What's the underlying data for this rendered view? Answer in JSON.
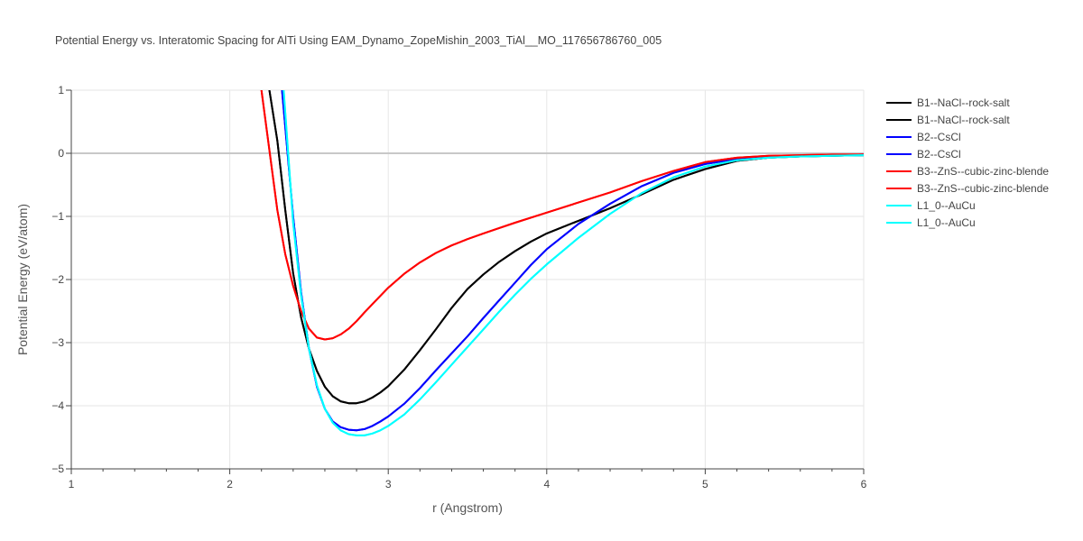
{
  "chart_data": {
    "type": "line",
    "title": "Potential Energy vs. Interatomic Spacing for AlTi Using EAM_Dynamo_ZopeMishin_2003_TiAl__MO_117656786760_005",
    "xlabel": "r (Angstrom)",
    "ylabel": "Potential Energy (eV/atom)",
    "xlim": [
      1,
      6
    ],
    "ylim": [
      -5,
      1
    ],
    "x_ticks": [
      1,
      2,
      3,
      4,
      5,
      6
    ],
    "y_ticks": [
      1,
      0,
      -1,
      -2,
      -3,
      -4,
      -5
    ],
    "x_tick_labels": [
      "1",
      "2",
      "3",
      "4",
      "5",
      "6"
    ],
    "y_tick_labels": [
      "1",
      "0",
      "−1",
      "−2",
      "−3",
      "−4",
      "−5"
    ],
    "grid": true,
    "legend_position": "top-right",
    "series": [
      {
        "name": "B1--NaCl--rock-salt",
        "color": "#000000",
        "x": [
          2.25,
          2.3,
          2.35,
          2.4,
          2.45,
          2.5,
          2.55,
          2.6,
          2.65,
          2.7,
          2.75,
          2.8,
          2.85,
          2.9,
          2.95,
          3.0,
          3.1,
          3.2,
          3.3,
          3.4,
          3.5,
          3.6,
          3.7,
          3.8,
          3.9,
          4.0,
          4.2,
          4.4,
          4.6,
          4.8,
          5.0,
          5.2,
          5.4,
          5.6,
          5.8,
          6.0
        ],
        "y": [
          1.0,
          0.2,
          -0.9,
          -1.9,
          -2.6,
          -3.1,
          -3.45,
          -3.7,
          -3.85,
          -3.93,
          -3.96,
          -3.96,
          -3.93,
          -3.87,
          -3.79,
          -3.69,
          -3.43,
          -3.12,
          -2.79,
          -2.45,
          -2.15,
          -1.92,
          -1.72,
          -1.55,
          -1.4,
          -1.27,
          -1.07,
          -0.87,
          -0.65,
          -0.42,
          -0.25,
          -0.12,
          -0.07,
          -0.05,
          -0.04,
          -0.03
        ]
      },
      {
        "name": "B1--NaCl--rock-salt",
        "color": "#000000",
        "x": [
          2.25,
          2.3,
          2.35,
          2.4,
          2.45,
          2.5,
          2.55,
          2.6,
          2.65,
          2.7,
          2.75,
          2.8,
          2.85,
          2.9,
          2.95,
          3.0,
          3.1,
          3.2,
          3.3,
          3.4,
          3.5,
          3.6,
          3.7,
          3.8,
          3.9,
          4.0,
          4.2,
          4.4,
          4.6,
          4.8,
          5.0,
          5.2,
          5.4,
          5.6,
          5.8,
          6.0
        ],
        "y": [
          1.0,
          0.2,
          -0.9,
          -1.9,
          -2.6,
          -3.1,
          -3.45,
          -3.7,
          -3.85,
          -3.93,
          -3.96,
          -3.96,
          -3.93,
          -3.87,
          -3.79,
          -3.69,
          -3.43,
          -3.12,
          -2.79,
          -2.45,
          -2.15,
          -1.92,
          -1.72,
          -1.55,
          -1.4,
          -1.27,
          -1.07,
          -0.87,
          -0.65,
          -0.42,
          -0.25,
          -0.12,
          -0.07,
          -0.05,
          -0.04,
          -0.03
        ]
      },
      {
        "name": "B2--CsCl",
        "color": "#0000ff",
        "x": [
          2.33,
          2.4,
          2.45,
          2.5,
          2.55,
          2.6,
          2.65,
          2.7,
          2.75,
          2.8,
          2.85,
          2.9,
          2.95,
          3.0,
          3.1,
          3.2,
          3.3,
          3.4,
          3.5,
          3.6,
          3.7,
          3.8,
          3.9,
          4.0,
          4.2,
          4.4,
          4.6,
          4.8,
          5.0,
          5.2,
          5.4,
          5.6,
          5.8,
          6.0
        ],
        "y": [
          1.0,
          -1.0,
          -2.2,
          -3.1,
          -3.7,
          -4.05,
          -4.25,
          -4.34,
          -4.38,
          -4.39,
          -4.37,
          -4.32,
          -4.25,
          -4.17,
          -3.97,
          -3.72,
          -3.44,
          -3.17,
          -2.9,
          -2.61,
          -2.33,
          -2.05,
          -1.77,
          -1.52,
          -1.12,
          -0.8,
          -0.52,
          -0.31,
          -0.17,
          -0.09,
          -0.06,
          -0.04,
          -0.03,
          -0.02
        ]
      },
      {
        "name": "B2--CsCl",
        "color": "#0000ff",
        "x": [
          2.33,
          2.4,
          2.45,
          2.5,
          2.55,
          2.6,
          2.65,
          2.7,
          2.75,
          2.8,
          2.85,
          2.9,
          2.95,
          3.0,
          3.1,
          3.2,
          3.3,
          3.4,
          3.5,
          3.6,
          3.7,
          3.8,
          3.9,
          4.0,
          4.2,
          4.4,
          4.6,
          4.8,
          5.0,
          5.2,
          5.4,
          5.6,
          5.8,
          6.0
        ],
        "y": [
          1.0,
          -1.0,
          -2.2,
          -3.1,
          -3.7,
          -4.05,
          -4.25,
          -4.34,
          -4.38,
          -4.39,
          -4.37,
          -4.32,
          -4.25,
          -4.17,
          -3.97,
          -3.72,
          -3.44,
          -3.17,
          -2.9,
          -2.61,
          -2.33,
          -2.05,
          -1.77,
          -1.52,
          -1.12,
          -0.8,
          -0.52,
          -0.31,
          -0.17,
          -0.09,
          -0.06,
          -0.04,
          -0.03,
          -0.02
        ]
      },
      {
        "name": "B3--ZnS--cubic-zinc-blende",
        "color": "#ff0000",
        "x": [
          2.2,
          2.25,
          2.3,
          2.35,
          2.4,
          2.45,
          2.5,
          2.55,
          2.6,
          2.65,
          2.7,
          2.75,
          2.8,
          2.85,
          2.9,
          2.95,
          3.0,
          3.1,
          3.2,
          3.3,
          3.4,
          3.5,
          3.6,
          3.8,
          4.0,
          4.2,
          4.4,
          4.6,
          4.8,
          5.0,
          5.2,
          5.4,
          5.6,
          5.8,
          6.0
        ],
        "y": [
          1.0,
          0.05,
          -0.9,
          -1.6,
          -2.1,
          -2.5,
          -2.78,
          -2.92,
          -2.95,
          -2.93,
          -2.87,
          -2.78,
          -2.66,
          -2.52,
          -2.39,
          -2.26,
          -2.13,
          -1.91,
          -1.73,
          -1.58,
          -1.46,
          -1.36,
          -1.27,
          -1.1,
          -0.94,
          -0.78,
          -0.62,
          -0.44,
          -0.28,
          -0.14,
          -0.07,
          -0.04,
          -0.03,
          -0.02,
          -0.02
        ]
      },
      {
        "name": "B3--ZnS--cubic-zinc-blende",
        "color": "#ff0000",
        "x": [
          2.2,
          2.25,
          2.3,
          2.35,
          2.4,
          2.45,
          2.5,
          2.55,
          2.6,
          2.65,
          2.7,
          2.75,
          2.8,
          2.85,
          2.9,
          2.95,
          3.0,
          3.1,
          3.2,
          3.3,
          3.4,
          3.5,
          3.6,
          3.8,
          4.0,
          4.2,
          4.4,
          4.6,
          4.8,
          5.0,
          5.2,
          5.4,
          5.6,
          5.8,
          6.0
        ],
        "y": [
          1.0,
          0.05,
          -0.9,
          -1.6,
          -2.1,
          -2.5,
          -2.78,
          -2.92,
          -2.95,
          -2.93,
          -2.87,
          -2.78,
          -2.66,
          -2.52,
          -2.39,
          -2.26,
          -2.13,
          -1.91,
          -1.73,
          -1.58,
          -1.46,
          -1.36,
          -1.27,
          -1.1,
          -0.94,
          -0.78,
          -0.62,
          -0.44,
          -0.28,
          -0.14,
          -0.07,
          -0.04,
          -0.03,
          -0.02,
          -0.02
        ]
      },
      {
        "name": "L1_0--AuCu",
        "color": "#00ffff",
        "x": [
          2.34,
          2.4,
          2.45,
          2.5,
          2.55,
          2.6,
          2.65,
          2.7,
          2.75,
          2.8,
          2.85,
          2.9,
          2.95,
          3.0,
          3.1,
          3.2,
          3.3,
          3.4,
          3.5,
          3.6,
          3.7,
          3.8,
          3.9,
          4.0,
          4.2,
          4.4,
          4.6,
          4.8,
          5.0,
          5.2,
          5.4,
          5.6,
          5.8,
          6.0
        ],
        "y": [
          1.0,
          -1.1,
          -2.25,
          -3.1,
          -3.68,
          -4.05,
          -4.27,
          -4.39,
          -4.45,
          -4.47,
          -4.47,
          -4.44,
          -4.39,
          -4.32,
          -4.14,
          -3.9,
          -3.63,
          -3.35,
          -3.07,
          -2.79,
          -2.51,
          -2.24,
          -1.99,
          -1.76,
          -1.34,
          -0.96,
          -0.63,
          -0.38,
          -0.21,
          -0.11,
          -0.07,
          -0.05,
          -0.04,
          -0.03
        ]
      },
      {
        "name": "L1_0--AuCu",
        "color": "#00ffff",
        "x": [
          2.34,
          2.4,
          2.45,
          2.5,
          2.55,
          2.6,
          2.65,
          2.7,
          2.75,
          2.8,
          2.85,
          2.9,
          2.95,
          3.0,
          3.1,
          3.2,
          3.3,
          3.4,
          3.5,
          3.6,
          3.7,
          3.8,
          3.9,
          4.0,
          4.2,
          4.4,
          4.6,
          4.8,
          5.0,
          5.2,
          5.4,
          5.6,
          5.8,
          6.0
        ],
        "y": [
          1.0,
          -1.1,
          -2.25,
          -3.1,
          -3.68,
          -4.05,
          -4.27,
          -4.39,
          -4.45,
          -4.47,
          -4.47,
          -4.44,
          -4.39,
          -4.32,
          -4.14,
          -3.9,
          -3.63,
          -3.35,
          -3.07,
          -2.79,
          -2.51,
          -2.24,
          -1.99,
          -1.76,
          -1.34,
          -0.96,
          -0.63,
          -0.38,
          -0.21,
          -0.11,
          -0.07,
          -0.05,
          -0.04,
          -0.03
        ]
      }
    ]
  }
}
